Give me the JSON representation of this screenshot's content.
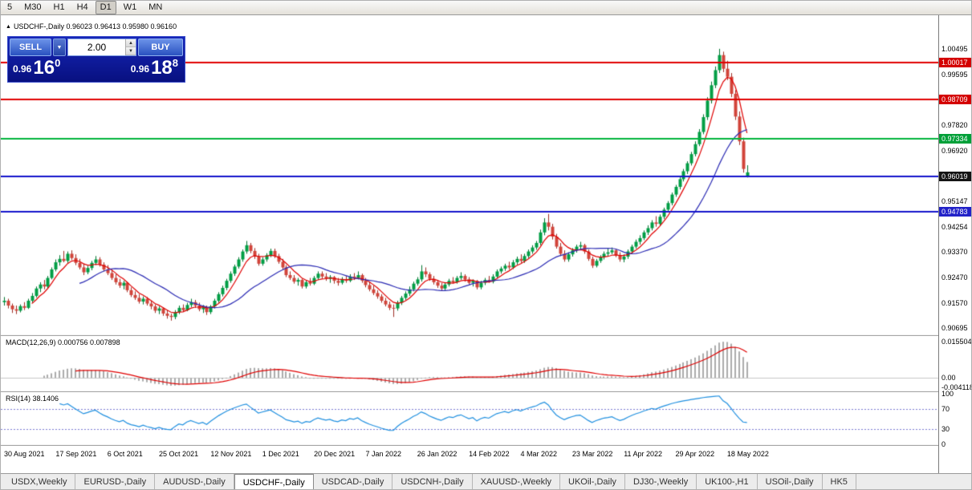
{
  "toolbar": {
    "timeframes": [
      "5",
      "M30",
      "H1",
      "H4",
      "D1",
      "W1",
      "MN"
    ],
    "active": "D1"
  },
  "icons": {
    "expand_arrow": "▲",
    "dropdown": "▼",
    "spin_up": "▲",
    "spin_down": "▼"
  },
  "chart": {
    "symbol": "USDCHF-,Daily",
    "info_line": "USDCHF-,Daily 0.96023 0.96413 0.95980 0.96160"
  },
  "trade_panel": {
    "sell_label": "SELL",
    "buy_label": "BUY",
    "volume": "2.00",
    "bid": {
      "prefix": "0.96",
      "big": "16",
      "sup": "0"
    },
    "ask": {
      "prefix": "0.96",
      "big": "18",
      "sup": "8"
    }
  },
  "tabs": [
    {
      "label": "USDX,Weekly",
      "active": false
    },
    {
      "label": "EURUSD-,Daily",
      "active": false
    },
    {
      "label": "AUDUSD-,Daily",
      "active": false
    },
    {
      "label": "USDCHF-,Daily",
      "active": true
    },
    {
      "label": "USDCAD-,Daily",
      "active": false
    },
    {
      "label": "USDCNH-,Daily",
      "active": false
    },
    {
      "label": "XAUUSD-,Weekly",
      "active": false
    },
    {
      "label": "UKOil-,Daily",
      "active": false
    },
    {
      "label": "DJ30-,Weekly",
      "active": false
    },
    {
      "label": "UK100-,H1",
      "active": false
    },
    {
      "label": "USOil-,Daily",
      "active": false
    },
    {
      "label": "HK5",
      "active": false
    }
  ],
  "chart_data": {
    "type": "candlestick",
    "symbol": "USDCHF-",
    "timeframe": "Daily",
    "ohlc_current": {
      "open": 0.96023,
      "high": 0.96413,
      "low": 0.9598,
      "close": 0.9616
    },
    "price_range": {
      "min": 0.9041,
      "max": 1.0168
    },
    "colors": {
      "up": "#009e45",
      "up_wick": "#00742f",
      "down": "#d2443a",
      "down_wick": "#9e2d24",
      "bg": "#ffffff"
    },
    "ma": [
      {
        "type": "lwma",
        "period": 8,
        "color": "#e00000"
      },
      {
        "type": "sma",
        "period": 20,
        "color": "#2b2bb4"
      }
    ],
    "lines": [
      {
        "price": 1.00017,
        "label": "1.00017",
        "line_color": "#e00000",
        "badge_color": "#d40000"
      },
      {
        "price": 0.98709,
        "label": "0.98709",
        "line_color": "#e00000",
        "badge_color": "#d40000"
      },
      {
        "price": 0.97334,
        "label": "0.97334",
        "line_color": "#00b43c",
        "badge_color": "#00a038"
      },
      {
        "price": 0.96019,
        "label": "0.96019",
        "line_color": "#1414cc",
        "badge_color": "#141414"
      },
      {
        "price": 0.94783,
        "label": "0.94783",
        "line_color": "#1414cc",
        "badge_color": "#2222c8"
      }
    ],
    "axis_ticks": [
      "1.00495",
      "0.99595",
      "0.97820",
      "0.96920",
      "0.95147",
      "0.94254",
      "0.93370",
      "0.92470",
      "0.91570",
      "0.90695"
    ],
    "dates": {
      "step": 13,
      "labels": [
        "30 Aug 2021",
        "17 Sep 2021",
        "6 Oct 2021",
        "25 Oct 2021",
        "12 Nov 2021",
        "1 Dec 2021",
        "20 Dec 2021",
        "7 Jan 2022",
        "26 Jan 2022",
        "14 Feb 2022",
        "4 Mar 2022",
        "23 Mar 2022",
        "11 Apr 2022",
        "29 Apr 2022",
        "18 May 2022"
      ]
    },
    "indicators": {
      "macd": {
        "display": "MACD(12,26,9) 0.000756 0.007898",
        "fast": 12,
        "slow": 26,
        "signal": 9,
        "value": 0.000756,
        "signal_value": 0.007898,
        "hist_color": "#ababab",
        "signal_color": "#e00000",
        "axis": [
          {
            "v": 0.015504,
            "t": "0.015504"
          },
          {
            "v": 0,
            "t": "0.00"
          },
          {
            "v": -0.004118,
            "t": "-0.004118"
          }
        ],
        "range": {
          "min": -0.0061,
          "max": 0.0179
        }
      },
      "rsi": {
        "display": "RSI(14) 38.1406",
        "period": 14,
        "value": 38.1406,
        "line_color": "#2090e0",
        "level_color": "#7b7bd2",
        "levels": [
          70,
          30
        ],
        "axis": [
          {
            "v": 100,
            "t": "100"
          },
          {
            "v": 70,
            "t": "70"
          },
          {
            "v": 30,
            "t": "30"
          },
          {
            "v": 0,
            "t": "0"
          }
        ]
      }
    },
    "candles": [
      [
        0.916,
        0.9178,
        0.9148,
        0.9165
      ],
      [
        0.9165,
        0.9172,
        0.9138,
        0.9148
      ],
      [
        0.9148,
        0.9155,
        0.9122,
        0.9135
      ],
      [
        0.9135,
        0.9148,
        0.9118,
        0.913
      ],
      [
        0.913,
        0.9152,
        0.9124,
        0.9146
      ],
      [
        0.9146,
        0.916,
        0.9132,
        0.914
      ],
      [
        0.914,
        0.9172,
        0.9136,
        0.9165
      ],
      [
        0.9165,
        0.9192,
        0.9158,
        0.9182
      ],
      [
        0.9182,
        0.9215,
        0.9176,
        0.9208
      ],
      [
        0.9208,
        0.923,
        0.9195,
        0.9222
      ],
      [
        0.9222,
        0.9238,
        0.9205,
        0.9215
      ],
      [
        0.9215,
        0.9252,
        0.921,
        0.9245
      ],
      [
        0.9245,
        0.9282,
        0.924,
        0.9275
      ],
      [
        0.9275,
        0.931,
        0.9268,
        0.93
      ],
      [
        0.93,
        0.9325,
        0.9288,
        0.9312
      ],
      [
        0.9312,
        0.934,
        0.93,
        0.9305
      ],
      [
        0.9305,
        0.9338,
        0.9298,
        0.933
      ],
      [
        0.933,
        0.9342,
        0.9308,
        0.9315
      ],
      [
        0.9315,
        0.9328,
        0.929,
        0.9298
      ],
      [
        0.9298,
        0.9312,
        0.9275,
        0.9282
      ],
      [
        0.9282,
        0.9295,
        0.9255,
        0.9265
      ],
      [
        0.9265,
        0.9288,
        0.9258,
        0.928
      ],
      [
        0.928,
        0.9305,
        0.9272,
        0.9298
      ],
      [
        0.9298,
        0.9322,
        0.929,
        0.931
      ],
      [
        0.931,
        0.9318,
        0.9285,
        0.9292
      ],
      [
        0.9292,
        0.93,
        0.9268,
        0.9275
      ],
      [
        0.9275,
        0.929,
        0.9255,
        0.9262
      ],
      [
        0.9262,
        0.9272,
        0.9238,
        0.9245
      ],
      [
        0.9245,
        0.9258,
        0.9222,
        0.923
      ],
      [
        0.923,
        0.9242,
        0.921,
        0.9218
      ],
      [
        0.9218,
        0.9235,
        0.9205,
        0.9228
      ],
      [
        0.9228,
        0.9232,
        0.9195,
        0.9202
      ],
      [
        0.9202,
        0.9212,
        0.9178,
        0.9185
      ],
      [
        0.9185,
        0.9198,
        0.9168,
        0.9175
      ],
      [
        0.9175,
        0.9188,
        0.9155,
        0.9162
      ],
      [
        0.9162,
        0.918,
        0.9152,
        0.9172
      ],
      [
        0.9172,
        0.9178,
        0.9148,
        0.9155
      ],
      [
        0.9155,
        0.9165,
        0.9135,
        0.9145
      ],
      [
        0.9145,
        0.9152,
        0.9122,
        0.913
      ],
      [
        0.913,
        0.9145,
        0.9118,
        0.9138
      ],
      [
        0.9138,
        0.9142,
        0.9112,
        0.912
      ],
      [
        0.912,
        0.9132,
        0.9102,
        0.9112
      ],
      [
        0.9112,
        0.912,
        0.9095,
        0.9108
      ],
      [
        0.9108,
        0.9132,
        0.91,
        0.9125
      ],
      [
        0.9125,
        0.9148,
        0.9118,
        0.914
      ],
      [
        0.914,
        0.9152,
        0.9125,
        0.9132
      ],
      [
        0.9132,
        0.9158,
        0.9128,
        0.915
      ],
      [
        0.915,
        0.9172,
        0.9142,
        0.916
      ],
      [
        0.916,
        0.9168,
        0.914,
        0.9148
      ],
      [
        0.9148,
        0.9158,
        0.9128,
        0.9135
      ],
      [
        0.9135,
        0.915,
        0.9122,
        0.9142
      ],
      [
        0.9142,
        0.9148,
        0.9115,
        0.9125
      ],
      [
        0.9125,
        0.915,
        0.9118,
        0.9145
      ],
      [
        0.9145,
        0.9172,
        0.9138,
        0.9165
      ],
      [
        0.9165,
        0.9195,
        0.9158,
        0.9188
      ],
      [
        0.9188,
        0.9218,
        0.918,
        0.921
      ],
      [
        0.921,
        0.9242,
        0.9202,
        0.9235
      ],
      [
        0.9235,
        0.9268,
        0.9228,
        0.926
      ],
      [
        0.926,
        0.9292,
        0.9252,
        0.9285
      ],
      [
        0.9285,
        0.9318,
        0.9278,
        0.931
      ],
      [
        0.931,
        0.9345,
        0.9302,
        0.9338
      ],
      [
        0.9338,
        0.9375,
        0.933,
        0.936
      ],
      [
        0.936,
        0.9368,
        0.9332,
        0.934
      ],
      [
        0.934,
        0.935,
        0.9312,
        0.932
      ],
      [
        0.932,
        0.933,
        0.9288,
        0.9295
      ],
      [
        0.9295,
        0.9318,
        0.9288,
        0.931
      ],
      [
        0.931,
        0.9332,
        0.9302,
        0.9325
      ],
      [
        0.9325,
        0.9348,
        0.9318,
        0.934
      ],
      [
        0.934,
        0.9348,
        0.9315,
        0.9322
      ],
      [
        0.9322,
        0.933,
        0.9295,
        0.9302
      ],
      [
        0.9302,
        0.9312,
        0.9275,
        0.9282
      ],
      [
        0.9282,
        0.929,
        0.9248,
        0.9255
      ],
      [
        0.9255,
        0.9268,
        0.9238,
        0.9245
      ],
      [
        0.9245,
        0.9255,
        0.9225,
        0.9232
      ],
      [
        0.9232,
        0.9245,
        0.9218,
        0.9238
      ],
      [
        0.9238,
        0.9242,
        0.9208,
        0.9215
      ],
      [
        0.9215,
        0.9238,
        0.9208,
        0.923
      ],
      [
        0.923,
        0.9245,
        0.9218,
        0.9225
      ],
      [
        0.9225,
        0.9252,
        0.922,
        0.9245
      ],
      [
        0.9245,
        0.9268,
        0.9238,
        0.926
      ],
      [
        0.926,
        0.9268,
        0.9242,
        0.925
      ],
      [
        0.925,
        0.9262,
        0.9235,
        0.9242
      ],
      [
        0.9242,
        0.9255,
        0.9228,
        0.9248
      ],
      [
        0.9248,
        0.9252,
        0.9225,
        0.9235
      ],
      [
        0.9235,
        0.9245,
        0.9218,
        0.9228
      ],
      [
        0.9228,
        0.9248,
        0.9222,
        0.924
      ],
      [
        0.924,
        0.9252,
        0.9228,
        0.9235
      ],
      [
        0.9235,
        0.9258,
        0.923,
        0.925
      ],
      [
        0.925,
        0.9262,
        0.9238,
        0.9245
      ],
      [
        0.9245,
        0.9268,
        0.924,
        0.9255
      ],
      [
        0.9255,
        0.926,
        0.9228,
        0.9235
      ],
      [
        0.9235,
        0.9245,
        0.9212,
        0.922
      ],
      [
        0.922,
        0.9232,
        0.9198,
        0.9205
      ],
      [
        0.9205,
        0.9218,
        0.9185,
        0.9192
      ],
      [
        0.9192,
        0.9202,
        0.9172,
        0.918
      ],
      [
        0.918,
        0.9188,
        0.9158,
        0.9165
      ],
      [
        0.9165,
        0.9175,
        0.9145,
        0.9152
      ],
      [
        0.9152,
        0.9162,
        0.9132,
        0.914
      ],
      [
        0.914,
        0.9152,
        0.9108,
        0.9138
      ],
      [
        0.9138,
        0.9165,
        0.913,
        0.9158
      ],
      [
        0.9158,
        0.9182,
        0.915,
        0.9175
      ],
      [
        0.9175,
        0.9198,
        0.9168,
        0.919
      ],
      [
        0.919,
        0.9215,
        0.9182,
        0.9205
      ],
      [
        0.9205,
        0.9232,
        0.9198,
        0.9225
      ],
      [
        0.9225,
        0.9248,
        0.9218,
        0.924
      ],
      [
        0.924,
        0.929,
        0.9232,
        0.9268
      ],
      [
        0.9268,
        0.9282,
        0.9248,
        0.9258
      ],
      [
        0.9258,
        0.9265,
        0.9235,
        0.9242
      ],
      [
        0.9242,
        0.9252,
        0.9222,
        0.923
      ],
      [
        0.923,
        0.9238,
        0.921,
        0.9218
      ],
      [
        0.9218,
        0.9228,
        0.92,
        0.9208
      ],
      [
        0.9208,
        0.923,
        0.9202,
        0.9222
      ],
      [
        0.9222,
        0.9242,
        0.9215,
        0.9235
      ],
      [
        0.9235,
        0.9248,
        0.9225,
        0.923
      ],
      [
        0.923,
        0.9252,
        0.9225,
        0.9245
      ],
      [
        0.9245,
        0.9265,
        0.9238,
        0.9252
      ],
      [
        0.9252,
        0.9258,
        0.9232,
        0.924
      ],
      [
        0.924,
        0.9248,
        0.9222,
        0.9228
      ],
      [
        0.9228,
        0.924,
        0.9215,
        0.9235
      ],
      [
        0.9235,
        0.9238,
        0.9205,
        0.9212
      ],
      [
        0.9212,
        0.9235,
        0.9205,
        0.9228
      ],
      [
        0.9228,
        0.9245,
        0.922,
        0.9238
      ],
      [
        0.9238,
        0.9252,
        0.9228,
        0.9232
      ],
      [
        0.9232,
        0.9258,
        0.9226,
        0.925
      ],
      [
        0.925,
        0.9275,
        0.9244,
        0.9268
      ],
      [
        0.9268,
        0.9285,
        0.926,
        0.9278
      ],
      [
        0.9278,
        0.9295,
        0.927,
        0.9288
      ],
      [
        0.9288,
        0.9302,
        0.9275,
        0.9282
      ],
      [
        0.9282,
        0.9308,
        0.9276,
        0.93
      ],
      [
        0.93,
        0.932,
        0.9292,
        0.9312
      ],
      [
        0.9312,
        0.9328,
        0.9298,
        0.9305
      ],
      [
        0.9305,
        0.933,
        0.9298,
        0.9322
      ],
      [
        0.9322,
        0.9345,
        0.9315,
        0.9338
      ],
      [
        0.9338,
        0.936,
        0.933,
        0.9352
      ],
      [
        0.9352,
        0.9375,
        0.9344,
        0.9368
      ],
      [
        0.9368,
        0.9415,
        0.936,
        0.9405
      ],
      [
        0.9405,
        0.9455,
        0.9395,
        0.944
      ],
      [
        0.944,
        0.947,
        0.9412,
        0.9425
      ],
      [
        0.9425,
        0.9435,
        0.938,
        0.939
      ],
      [
        0.939,
        0.94,
        0.9348,
        0.9355
      ],
      [
        0.9355,
        0.9368,
        0.9322,
        0.933
      ],
      [
        0.933,
        0.9342,
        0.9302,
        0.931
      ],
      [
        0.931,
        0.9335,
        0.9302,
        0.9328
      ],
      [
        0.9328,
        0.935,
        0.932,
        0.9342
      ],
      [
        0.9342,
        0.9362,
        0.9334,
        0.9355
      ],
      [
        0.9355,
        0.9372,
        0.9345,
        0.936
      ],
      [
        0.936,
        0.9365,
        0.933,
        0.9338
      ],
      [
        0.9338,
        0.9345,
        0.9305,
        0.9312
      ],
      [
        0.9312,
        0.932,
        0.928,
        0.9288
      ],
      [
        0.9288,
        0.9312,
        0.9282,
        0.9305
      ],
      [
        0.9305,
        0.9325,
        0.9298,
        0.9318
      ],
      [
        0.9318,
        0.9338,
        0.931,
        0.933
      ],
      [
        0.933,
        0.9348,
        0.9322,
        0.9335
      ],
      [
        0.9335,
        0.9352,
        0.9328,
        0.9342
      ],
      [
        0.9342,
        0.9348,
        0.9318,
        0.9325
      ],
      [
        0.9325,
        0.9335,
        0.9302,
        0.931
      ],
      [
        0.931,
        0.9328,
        0.93,
        0.932
      ],
      [
        0.932,
        0.9345,
        0.9312,
        0.9338
      ],
      [
        0.9338,
        0.9362,
        0.933,
        0.9355
      ],
      [
        0.9355,
        0.938,
        0.9348,
        0.9372
      ],
      [
        0.9372,
        0.9395,
        0.9362,
        0.9385
      ],
      [
        0.9385,
        0.9412,
        0.9378,
        0.9405
      ],
      [
        0.9405,
        0.943,
        0.9396,
        0.942
      ],
      [
        0.942,
        0.9448,
        0.9412,
        0.944
      ],
      [
        0.944,
        0.9462,
        0.9425,
        0.9435
      ],
      [
        0.9435,
        0.9468,
        0.9428,
        0.946
      ],
      [
        0.946,
        0.9492,
        0.9452,
        0.9485
      ],
      [
        0.9485,
        0.9515,
        0.9476,
        0.9508
      ],
      [
        0.9508,
        0.9545,
        0.95,
        0.9538
      ],
      [
        0.9538,
        0.9572,
        0.953,
        0.9565
      ],
      [
        0.9565,
        0.96,
        0.9556,
        0.9592
      ],
      [
        0.9592,
        0.9628,
        0.9584,
        0.962
      ],
      [
        0.962,
        0.9655,
        0.961,
        0.9648
      ],
      [
        0.9648,
        0.9688,
        0.964,
        0.968
      ],
      [
        0.968,
        0.9725,
        0.9672,
        0.9715
      ],
      [
        0.9715,
        0.9768,
        0.9708,
        0.9758
      ],
      [
        0.9758,
        0.982,
        0.975,
        0.981
      ],
      [
        0.981,
        0.988,
        0.98,
        0.9868
      ],
      [
        0.9868,
        0.9935,
        0.9858,
        0.9922
      ],
      [
        0.9922,
        0.9988,
        0.9912,
        0.9975
      ],
      [
        0.9975,
        1.005,
        0.9965,
        1.0028
      ],
      [
        1.0028,
        1.004,
        0.9968,
        0.998
      ],
      [
        0.998,
        1.0008,
        0.994,
        0.9952
      ],
      [
        0.9952,
        0.9965,
        0.988,
        0.9892
      ],
      [
        0.9892,
        0.9905,
        0.98,
        0.9812
      ],
      [
        0.9812,
        0.983,
        0.9712,
        0.9725
      ],
      [
        0.9725,
        0.9738,
        0.9615,
        0.9628
      ],
      [
        0.9602,
        0.9641,
        0.9598,
        0.9616
      ]
    ]
  }
}
